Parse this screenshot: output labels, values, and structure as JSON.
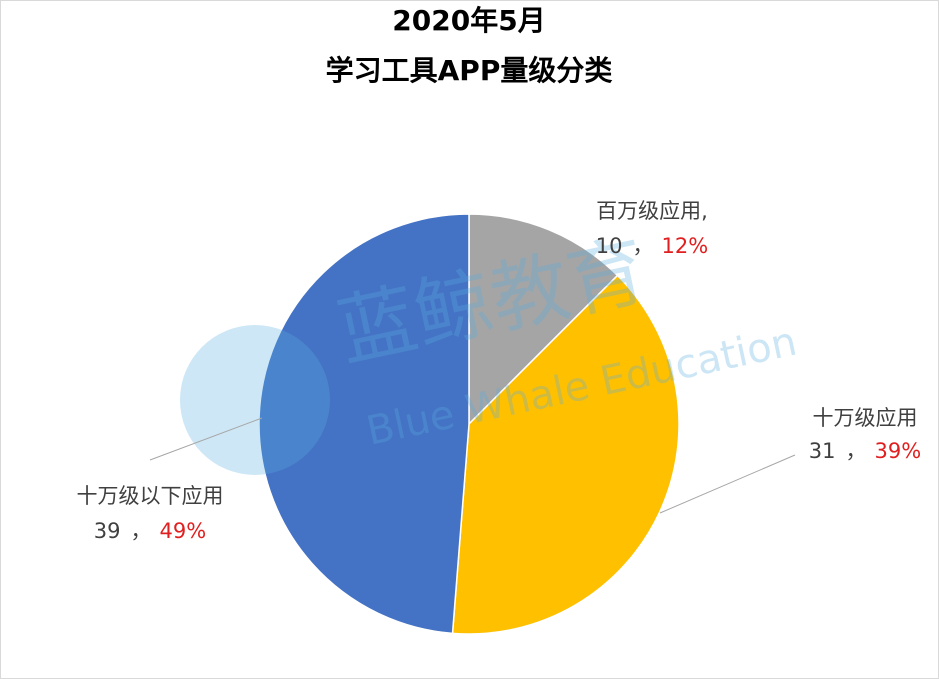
{
  "chart_data": {
    "type": "pie",
    "title_lines": [
      "2020年5月",
      "学习工具APP量级分类"
    ],
    "categories": [
      "百万级应用,",
      "十万级应用",
      "十万级以下应用"
    ],
    "values": [
      10,
      31,
      39
    ],
    "percent_labels": [
      "12%",
      "39%",
      "49%"
    ],
    "separator": "，",
    "colors": [
      "#a5a5a5",
      "#ffc000",
      "#4472c4"
    ],
    "watermark": [
      "蓝鲸教育",
      "Blue Whale Education"
    ]
  }
}
